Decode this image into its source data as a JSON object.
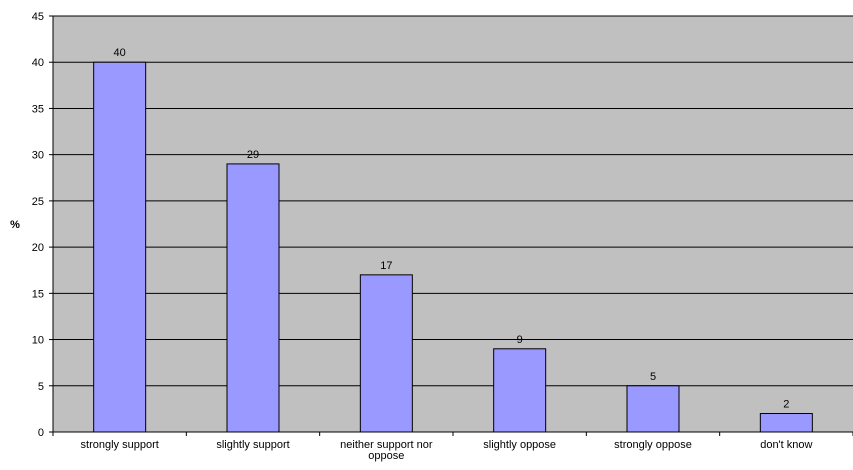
{
  "chart_data": {
    "type": "bar",
    "title": "",
    "xlabel": "",
    "ylabel": "%",
    "ylim": [
      0,
      45
    ],
    "yticks": [
      0,
      5,
      10,
      15,
      20,
      25,
      30,
      35,
      40,
      45
    ],
    "grid": true,
    "legend": "none",
    "categories": [
      "strongly support",
      "slightly support",
      "neither support nor oppose",
      "slightly oppose",
      "strongly oppose",
      "don't know"
    ],
    "category_label_lines": [
      [
        "strongly support"
      ],
      [
        "slightly support"
      ],
      [
        "neither support nor",
        "oppose"
      ],
      [
        "slightly oppose"
      ],
      [
        "strongly oppose"
      ],
      [
        "don't know"
      ]
    ],
    "values": [
      40,
      29,
      17,
      9,
      5,
      2
    ],
    "colors": {
      "bar_fill": "#9999FF",
      "bar_stroke": "#000000",
      "plot_background": "#C0C0C0",
      "gridline": "#000000"
    }
  }
}
